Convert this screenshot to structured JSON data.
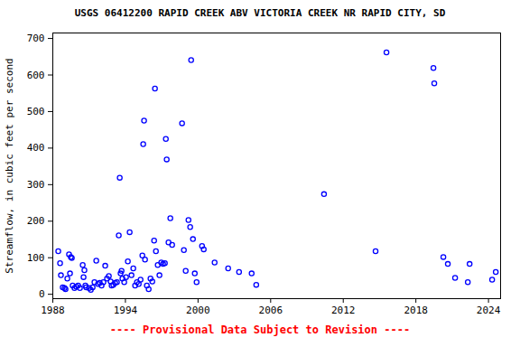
{
  "chart_data": {
    "type": "scatter",
    "title": "USGS 06412200 RAPID CREEK ABV VICTORIA CREEK NR RAPID CITY, SD",
    "y_label": "Streamflow, in cubic feet per second",
    "caption": "---- Provisional Data Subject to Revision ----",
    "x": [
      1988.45,
      1988.6,
      1988.67,
      1988.82,
      1988.97,
      1989.05,
      1989.2,
      1989.34,
      1989.42,
      1989.49,
      1989.57,
      1989.64,
      1989.79,
      1989.94,
      1990.09,
      1990.24,
      1990.47,
      1990.54,
      1990.61,
      1990.69,
      1990.76,
      1990.99,
      1991.14,
      1991.29,
      1991.44,
      1991.59,
      1991.74,
      1991.88,
      1992.03,
      1992.18,
      1992.33,
      1992.48,
      1992.63,
      1992.78,
      1992.86,
      1993.0,
      1993.15,
      1993.3,
      1993.45,
      1993.53,
      1993.6,
      1993.68,
      1993.75,
      1993.9,
      1994.05,
      1994.2,
      1994.35,
      1994.5,
      1994.65,
      1994.8,
      1994.95,
      1995.1,
      1995.25,
      1995.4,
      1995.47,
      1995.54,
      1995.62,
      1995.77,
      1995.92,
      1996.07,
      1996.22,
      1996.37,
      1996.44,
      1996.52,
      1996.67,
      1996.81,
      1996.96,
      1997.11,
      1997.26,
      1997.34,
      1997.41,
      1997.56,
      1997.71,
      1997.86,
      1998.68,
      1998.83,
      1998.98,
      1999.21,
      1999.35,
      1999.43,
      1999.58,
      1999.73,
      1999.88,
      2000.33,
      2000.47,
      2001.37,
      2002.49,
      2003.39,
      2004.43,
      2004.81,
      2010.41,
      2014.67,
      2015.57,
      2019.45,
      2019.52,
      2020.27,
      2020.64,
      2021.24,
      2022.29,
      2022.44,
      2024.3,
      2024.6
    ],
    "values": [
      118,
      85,
      52,
      19,
      17,
      14,
      43,
      109,
      57,
      102,
      99,
      24,
      17,
      21,
      24,
      17,
      80,
      47,
      66,
      24,
      19,
      17,
      12,
      19,
      33,
      92,
      28,
      31,
      24,
      33,
      78,
      43,
      50,
      35,
      24,
      26,
      31,
      33,
      161,
      319,
      57,
      64,
      43,
      33,
      47,
      90,
      170,
      52,
      71,
      24,
      33,
      28,
      40,
      106,
      411,
      475,
      95,
      24,
      14,
      43,
      35,
      147,
      563,
      118,
      80,
      52,
      87,
      83,
      85,
      425,
      369,
      142,
      208,
      135,
      468,
      121,
      64,
      203,
      184,
      641,
      151,
      57,
      33,
      132,
      123,
      87,
      71,
      61,
      57,
      26,
      274,
      118,
      662,
      619,
      577,
      102,
      83,
      45,
      33,
      83,
      40,
      61
    ],
    "color": "#0000ff",
    "marker": "circle",
    "grid": false,
    "xlim": [
      1988,
      2025
    ],
    "xticks": [
      1988,
      1994,
      2000,
      2006,
      2012,
      2018,
      2024
    ],
    "ylim": [
      -12,
      715
    ],
    "yticks": [
      0,
      100,
      200,
      300,
      400,
      500,
      600,
      700
    ]
  }
}
